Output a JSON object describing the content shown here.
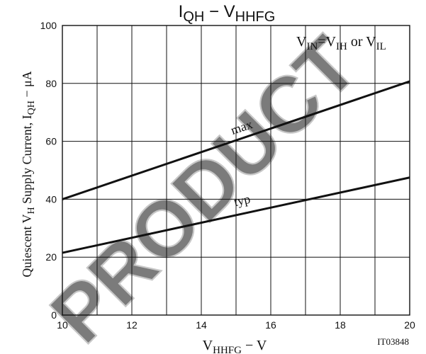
{
  "colors": {
    "background": "#ffffff",
    "ink": "#111111",
    "watermark": "#9a9a9a"
  },
  "chart_data": {
    "type": "line",
    "title": {
      "main": "I",
      "sub": "QH",
      "middle": " − V",
      "sub2": "HHFG"
    },
    "xlabel": {
      "main": "V",
      "sub": "HHFG",
      "unit": " − V"
    },
    "ylabel": {
      "p1": "Quiescent V",
      "s1": "H",
      "p2": " Supply Current, I",
      "s2": "QH",
      "p3": " − μA"
    },
    "condition": {
      "p1": "V",
      "s1": "IN",
      "p2": "=V",
      "s2": "IH",
      "p3": " or V",
      "s3": "IL"
    },
    "figure_id": "IT03848",
    "watermark": "PRODUCT",
    "xlim": [
      10,
      20
    ],
    "ylim": [
      0,
      100
    ],
    "x_ticks": [
      10,
      12,
      14,
      16,
      18,
      20
    ],
    "y_ticks": [
      0,
      20,
      40,
      60,
      80,
      100
    ],
    "x_minor_grid": [
      11,
      13,
      15,
      17,
      19
    ],
    "grid": true,
    "series": [
      {
        "name": "max",
        "x": [
          10,
          20
        ],
        "y": [
          40,
          80.7
        ],
        "label_at": [
          15.2,
          63.5
        ]
      },
      {
        "name": "typ",
        "x": [
          10,
          20
        ],
        "y": [
          21.5,
          47.5
        ],
        "label_at": [
          15.2,
          38.2
        ]
      }
    ]
  }
}
